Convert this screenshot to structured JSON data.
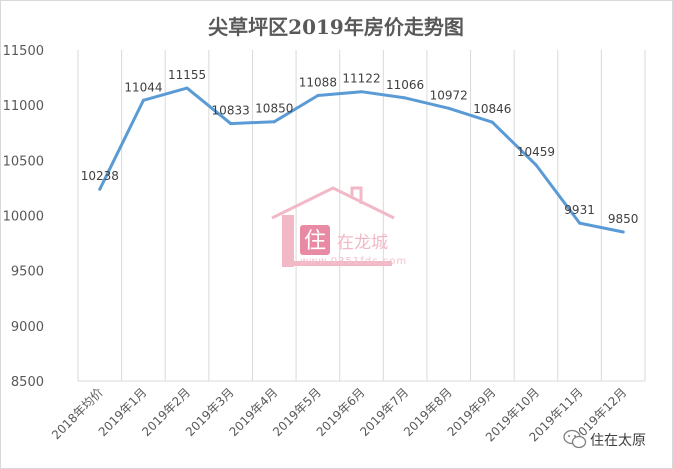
{
  "chart_data": {
    "type": "line",
    "title": "尖草坪区2019年房价走势图",
    "categories": [
      "2018年均价",
      "2019年1月",
      "2019年2月",
      "2019年3月",
      "2019年4月",
      "2019年5月",
      "2019年6月",
      "2019年7月",
      "2019年8月",
      "2019年9月",
      "2019年10月",
      "2019年11月",
      "2019年12月"
    ],
    "series": [
      {
        "values": [
          10238,
          11044,
          11155,
          10833,
          10850,
          11088,
          11122,
          11066,
          10972,
          10846,
          10459,
          9931,
          9850
        ]
      }
    ],
    "ylim": [
      8500,
      11500
    ],
    "yticks": [
      "8500",
      "9000",
      "9500",
      "10000",
      "10500",
      "11000",
      "11500"
    ],
    "grid": "vertical",
    "line_color": "#5b9bd5",
    "xlabel": "",
    "ylabel": ""
  },
  "watermark": {
    "logo_char": "住",
    "brand": "在龙城",
    "url": "www.0351fdc.com",
    "color": "#f2b8c6"
  },
  "source": {
    "icon": "wechat-icon",
    "label": "住在太原"
  }
}
